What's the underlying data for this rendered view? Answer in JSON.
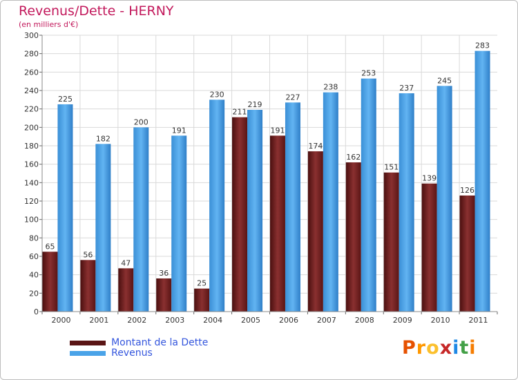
{
  "title": "Revenus/Dette - HERNY",
  "subtitle": "(en milliers d'€)",
  "brand": {
    "text": "Proxiti",
    "letter_colors": [
      "#e65100",
      "#ff9800",
      "#fbc02d",
      "#c62828",
      "#1e88e5",
      "#43a047",
      "#f57c00"
    ]
  },
  "chart_data": {
    "type": "bar",
    "categories": [
      "2000",
      "2001",
      "2002",
      "2003",
      "2004",
      "2005",
      "2006",
      "2007",
      "2008",
      "2009",
      "2010",
      "2011"
    ],
    "series": [
      {
        "name": "Montant de la Dette",
        "values": [
          65,
          56,
          47,
          36,
          25,
          211,
          191,
          174,
          162,
          151,
          139,
          126
        ],
        "color": "#6b1f1f"
      },
      {
        "name": "Revenus",
        "values": [
          225,
          182,
          200,
          191,
          230,
          219,
          227,
          238,
          253,
          237,
          245,
          283
        ],
        "color": "#4aa3e8"
      }
    ],
    "ylim": [
      0,
      300
    ],
    "ytick_step": 20,
    "grid": true,
    "legend_position": "bottom-left"
  }
}
